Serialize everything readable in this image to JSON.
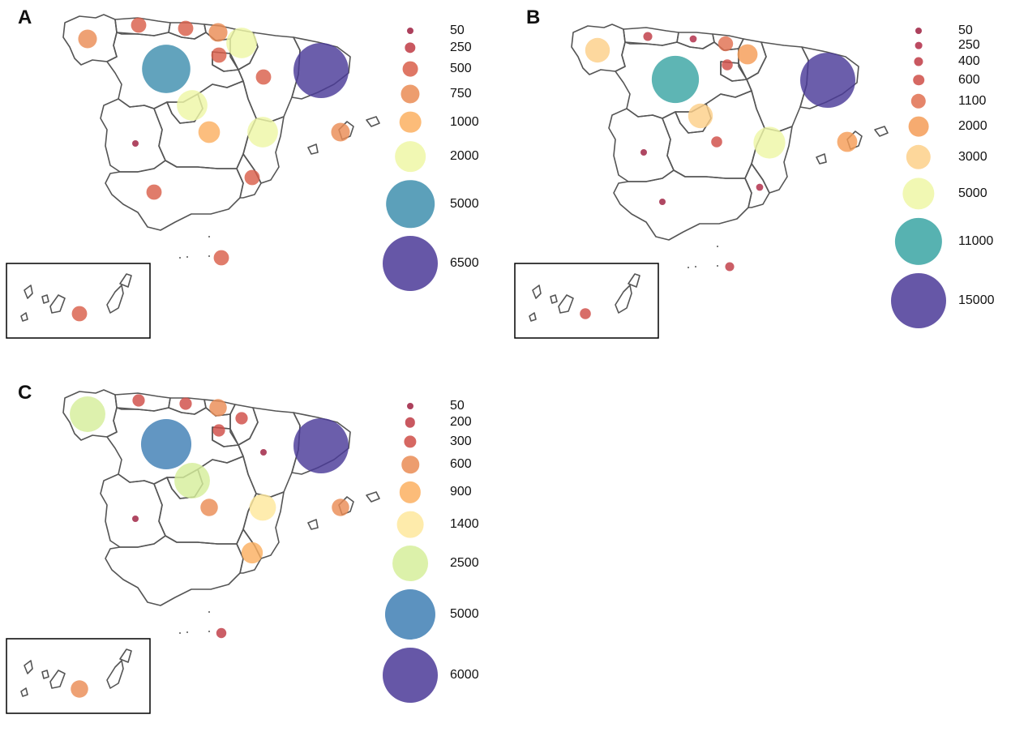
{
  "panels": [
    {
      "id": "A",
      "letter": "A",
      "legend": [
        {
          "label": "50",
          "value": 50,
          "color": "#9e1f3f"
        },
        {
          "label": "250",
          "value": 250,
          "color": "#c03b44"
        },
        {
          "label": "500",
          "value": 500,
          "color": "#d95f4a"
        },
        {
          "label": "750",
          "value": 750,
          "color": "#ea8c55"
        },
        {
          "label": "1000",
          "value": 1000,
          "color": "#fbb062"
        },
        {
          "label": "2000",
          "value": 2000,
          "color": "#eef7a6"
        },
        {
          "label": "5000",
          "value": 5000,
          "color": "#3f8fae"
        },
        {
          "label": "6500",
          "value": 6500,
          "color": "#4b3a98"
        }
      ],
      "bubbles": [
        {
          "region": "Galicia",
          "value": 750
        },
        {
          "region": "Asturias",
          "value": 500
        },
        {
          "region": "Cantabria",
          "value": 500
        },
        {
          "region": "Basque Country",
          "value": 750
        },
        {
          "region": "Navarre",
          "value": 2000
        },
        {
          "region": "La Rioja",
          "value": 500
        },
        {
          "region": "Aragon",
          "value": 500
        },
        {
          "region": "Catalonia",
          "value": 6500
        },
        {
          "region": "Castile and Leon",
          "value": 5000
        },
        {
          "region": "Madrid",
          "value": 2000
        },
        {
          "region": "Castile-La Mancha",
          "value": 1000
        },
        {
          "region": "Valencia",
          "value": 2000
        },
        {
          "region": "Balearic Islands",
          "value": 750
        },
        {
          "region": "Extremadura",
          "value": 50
        },
        {
          "region": "Andalusia",
          "value": 500
        },
        {
          "region": "Murcia",
          "value": 500
        },
        {
          "region": "Ceuta/Melilla",
          "value": 500
        },
        {
          "region": "Canary Islands",
          "value": 500
        }
      ]
    },
    {
      "id": "B",
      "letter": "B",
      "legend": [
        {
          "label": "50",
          "value": 50,
          "color": "#9e1f3f"
        },
        {
          "label": "250",
          "value": 250,
          "color": "#b02a45"
        },
        {
          "label": "400",
          "value": 400,
          "color": "#c03b44"
        },
        {
          "label": "600",
          "value": 600,
          "color": "#cf4d47"
        },
        {
          "label": "1100",
          "value": 1100,
          "color": "#e07050"
        },
        {
          "label": "2000",
          "value": 2000,
          "color": "#f59c57"
        },
        {
          "label": "3000",
          "value": 3000,
          "color": "#fdd089"
        },
        {
          "label": "5000",
          "value": 5000,
          "color": "#eef7a6"
        },
        {
          "label": "11000",
          "value": 11000,
          "color": "#3aa5a3"
        },
        {
          "label": "15000",
          "value": 15000,
          "color": "#4b3a98"
        }
      ],
      "bubbles": [
        {
          "region": "Galicia",
          "value": 3000
        },
        {
          "region": "Asturias",
          "value": 400
        },
        {
          "region": "Cantabria",
          "value": 250
        },
        {
          "region": "Basque Country",
          "value": 1100
        },
        {
          "region": "Navarre",
          "value": 2000
        },
        {
          "region": "La Rioja",
          "value": 600
        },
        {
          "region": "Catalonia",
          "value": 15000
        },
        {
          "region": "Castile and Leon",
          "value": 11000
        },
        {
          "region": "Madrid",
          "value": 3000
        },
        {
          "region": "Castile-La Mancha",
          "value": 600
        },
        {
          "region": "Valencia",
          "value": 5000
        },
        {
          "region": "Balearic Islands",
          "value": 2000
        },
        {
          "region": "Extremadura",
          "value": 50
        },
        {
          "region": "Andalusia",
          "value": 50
        },
        {
          "region": "Murcia",
          "value": 250
        },
        {
          "region": "Ceuta/Melilla",
          "value": 400
        },
        {
          "region": "Canary Islands",
          "value": 600
        }
      ]
    },
    {
      "id": "C",
      "letter": "C",
      "legend": [
        {
          "label": "50",
          "value": 50,
          "color": "#9e1f3f"
        },
        {
          "label": "200",
          "value": 200,
          "color": "#c03b44"
        },
        {
          "label": "300",
          "value": 300,
          "color": "#cf4d47"
        },
        {
          "label": "600",
          "value": 600,
          "color": "#ea8c55"
        },
        {
          "label": "900",
          "value": 900,
          "color": "#fbb062"
        },
        {
          "label": "1400",
          "value": 1400,
          "color": "#fee89c"
        },
        {
          "label": "2500",
          "value": 2500,
          "color": "#d6ee9b"
        },
        {
          "label": "5000",
          "value": 5000,
          "color": "#3f7fb4"
        },
        {
          "label": "6000",
          "value": 6000,
          "color": "#4b3a98"
        }
      ],
      "bubbles": [
        {
          "region": "Galicia",
          "value": 2500
        },
        {
          "region": "Asturias",
          "value": 300
        },
        {
          "region": "Cantabria",
          "value": 300
        },
        {
          "region": "Basque Country",
          "value": 600
        },
        {
          "region": "Navarre",
          "value": 300
        },
        {
          "region": "La Rioja",
          "value": 300
        },
        {
          "region": "Aragon",
          "value": 50
        },
        {
          "region": "Catalonia",
          "value": 6000
        },
        {
          "region": "Castile and Leon",
          "value": 5000
        },
        {
          "region": "Madrid",
          "value": 2500
        },
        {
          "region": "Castile-La Mancha",
          "value": 600
        },
        {
          "region": "Valencia",
          "value": 1400
        },
        {
          "region": "Balearic Islands",
          "value": 600
        },
        {
          "region": "Extremadura",
          "value": 50
        },
        {
          "region": "Murcia",
          "value": 900
        },
        {
          "region": "Ceuta/Melilla",
          "value": 200
        },
        {
          "region": "Canary Islands",
          "value": 600
        }
      ]
    }
  ]
}
